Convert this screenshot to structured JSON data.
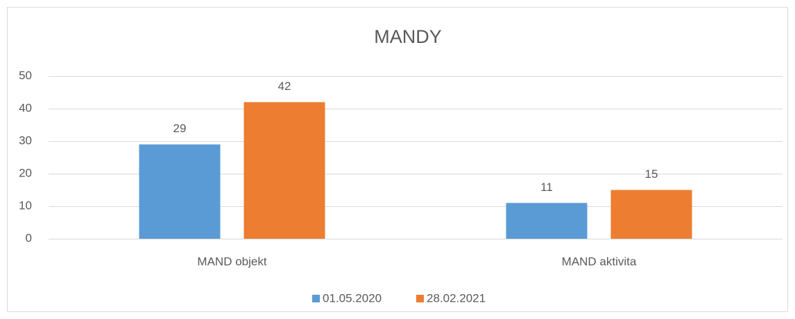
{
  "chart_data": {
    "type": "bar",
    "title": "MANDY",
    "categories": [
      "MAND objekt",
      "MAND aktivita"
    ],
    "series": [
      {
        "name": "01.05.2020",
        "color": "#5b9bd5",
        "values": [
          29,
          11
        ]
      },
      {
        "name": "28.02.2021",
        "color": "#ed7d31",
        "values": [
          42,
          15
        ]
      }
    ],
    "ylim": [
      0,
      50
    ],
    "yticks": [
      0,
      10,
      20,
      30,
      40,
      50
    ],
    "grid": true,
    "legend": "bottom"
  }
}
